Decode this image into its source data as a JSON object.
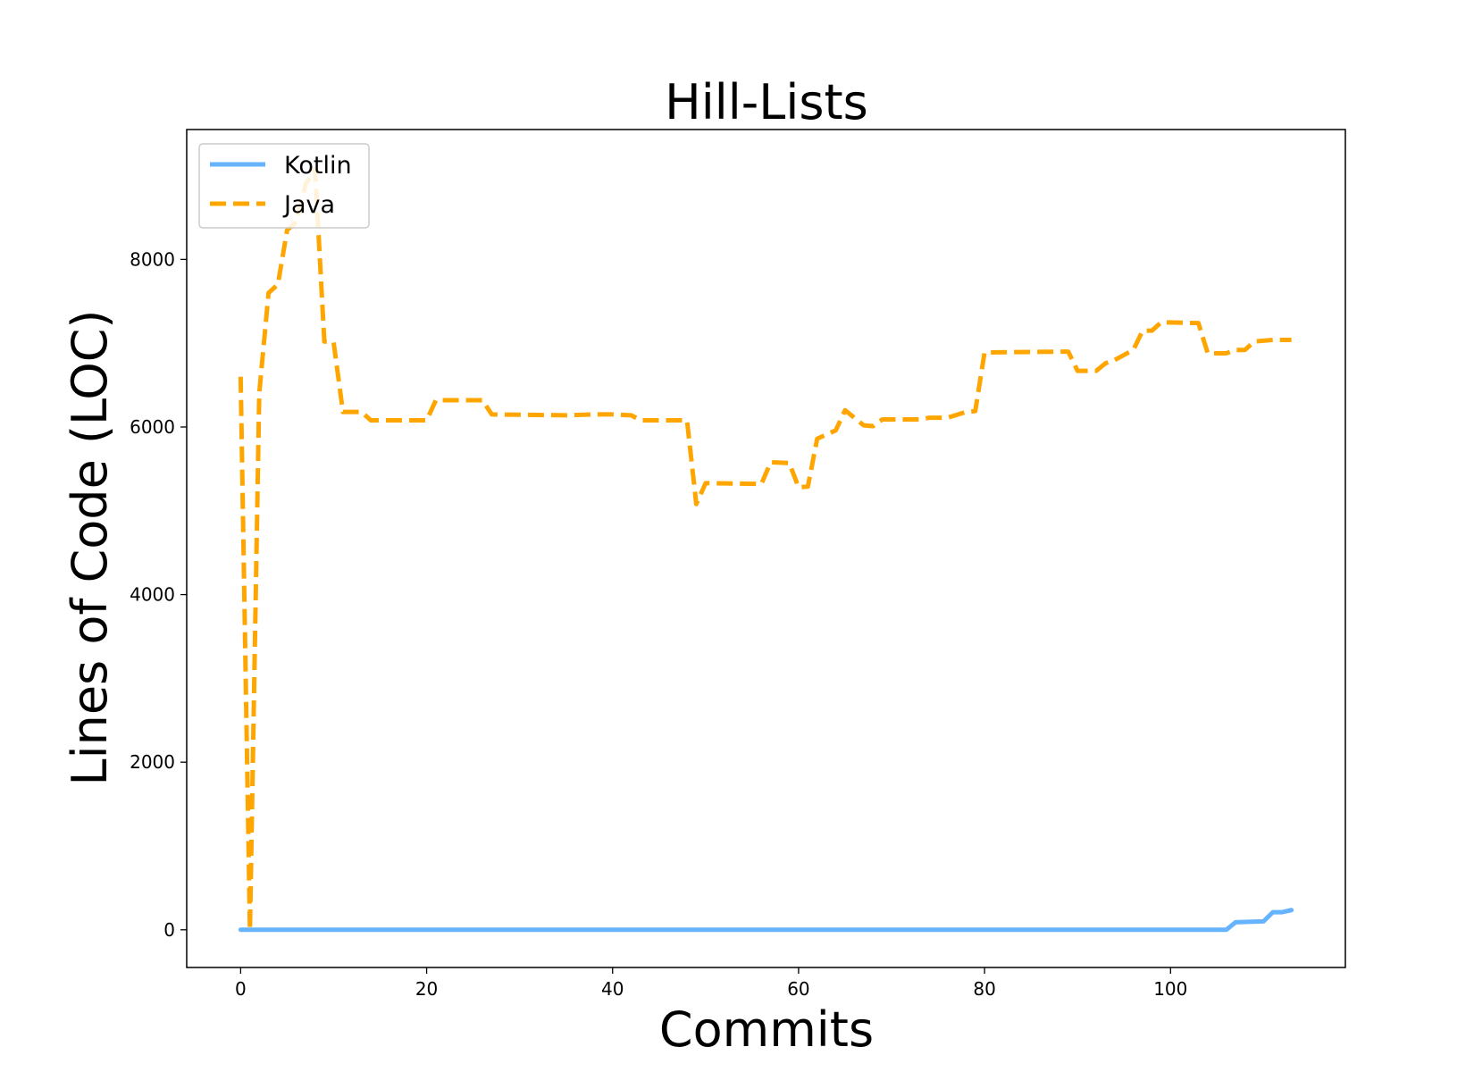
{
  "chart_data": {
    "type": "line",
    "title": "Hill-Lists",
    "xlabel": "Commits",
    "ylabel": "Lines of Code (LOC)",
    "xlim": [
      -5.8,
      118.8
    ],
    "ylim": [
      -450,
      9550
    ],
    "xticks": [
      0,
      20,
      40,
      60,
      80,
      100
    ],
    "yticks": [
      0,
      2000,
      4000,
      6000,
      8000
    ],
    "grid": false,
    "legend_position": "upper left",
    "series": [
      {
        "name": "Kotlin",
        "color": "#66b3ff",
        "style": "solid",
        "points": [
          [
            0,
            0
          ],
          [
            106,
            0
          ],
          [
            107,
            90
          ],
          [
            110,
            100
          ],
          [
            111,
            210
          ],
          [
            112,
            210
          ],
          [
            113,
            235
          ]
        ]
      },
      {
        "name": "Java",
        "color": "#ffa500",
        "style": "dashed",
        "points": [
          [
            0,
            6600
          ],
          [
            1,
            0
          ],
          [
            2,
            6400
          ],
          [
            3,
            7600
          ],
          [
            4,
            7700
          ],
          [
            5,
            8350
          ],
          [
            6,
            8450
          ],
          [
            7,
            8900
          ],
          [
            8,
            9080
          ],
          [
            9,
            7020
          ],
          [
            10,
            7010
          ],
          [
            11,
            6180
          ],
          [
            12,
            6180
          ],
          [
            13,
            6180
          ],
          [
            14,
            6080
          ],
          [
            15,
            6080
          ],
          [
            20,
            6080
          ],
          [
            21,
            6320
          ],
          [
            26,
            6320
          ],
          [
            27,
            6150
          ],
          [
            35,
            6140
          ],
          [
            38,
            6150
          ],
          [
            40,
            6150
          ],
          [
            42,
            6140
          ],
          [
            43,
            6080
          ],
          [
            48,
            6080
          ],
          [
            49,
            5080
          ],
          [
            50,
            5330
          ],
          [
            56,
            5320
          ],
          [
            57,
            5580
          ],
          [
            59,
            5570
          ],
          [
            60,
            5280
          ],
          [
            61,
            5290
          ],
          [
            62,
            5860
          ],
          [
            64,
            5960
          ],
          [
            65,
            6200
          ],
          [
            67,
            6020
          ],
          [
            68,
            6010
          ],
          [
            69,
            6090
          ],
          [
            73,
            6090
          ],
          [
            74,
            6110
          ],
          [
            76,
            6110
          ],
          [
            78,
            6180
          ],
          [
            79,
            6190
          ],
          [
            80,
            6890
          ],
          [
            89,
            6900
          ],
          [
            90,
            6670
          ],
          [
            92,
            6670
          ],
          [
            93,
            6760
          ],
          [
            94,
            6800
          ],
          [
            96,
            6920
          ],
          [
            97,
            7150
          ],
          [
            98,
            7150
          ],
          [
            99,
            7250
          ],
          [
            103,
            7240
          ],
          [
            104,
            6880
          ],
          [
            106,
            6880
          ],
          [
            107,
            6920
          ],
          [
            108,
            6920
          ],
          [
            109,
            7020
          ],
          [
            111,
            7040
          ],
          [
            113,
            7040
          ]
        ]
      }
    ]
  }
}
